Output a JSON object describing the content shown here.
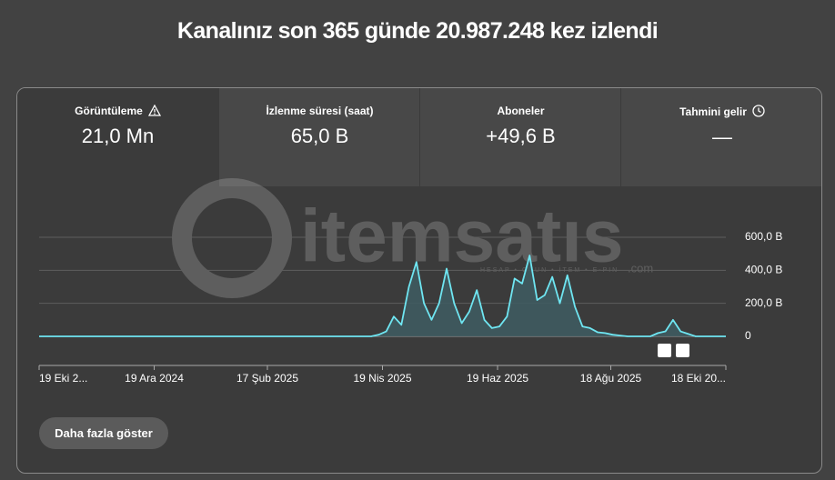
{
  "header": {
    "title": "Kanalınız son 365 günde 20.987.248 kez izlendi"
  },
  "metrics": [
    {
      "label": "Görüntüleme",
      "value": "21,0 Mn"
    },
    {
      "label": "İzlenme süresi (saat)",
      "value": "65,0 B"
    },
    {
      "label": "Aboneler",
      "value": "+49,6 B"
    },
    {
      "label": "Tahmini gelir",
      "value": "—"
    }
  ],
  "watermark": {
    "brand": "itemsatıs",
    "tagline": "HESAP • OYUN • İTEM • E-PIN",
    "domain": ".com"
  },
  "chart_data": {
    "type": "line",
    "color": "#6fe6f2",
    "fill": "#3f5b60",
    "grid": true,
    "x": [
      "2024-10-19",
      "2024-10-23",
      "2024-10-27",
      "2024-10-31",
      "2024-11-04",
      "2024-11-08",
      "2024-11-12",
      "2024-11-16",
      "2024-11-20",
      "2024-11-24",
      "2024-11-28",
      "2024-12-02",
      "2024-12-06",
      "2024-12-10",
      "2024-12-14",
      "2024-12-18",
      "2024-12-22",
      "2024-12-26",
      "2024-12-30",
      "2025-01-03",
      "2025-01-07",
      "2025-01-11",
      "2025-01-15",
      "2025-01-19",
      "2025-01-23",
      "2025-01-27",
      "2025-01-31",
      "2025-02-04",
      "2025-02-08",
      "2025-02-12",
      "2025-02-16",
      "2025-02-20",
      "2025-02-24",
      "2025-02-28",
      "2025-03-04",
      "2025-03-08",
      "2025-03-12",
      "2025-03-16",
      "2025-03-20",
      "2025-03-24",
      "2025-03-28",
      "2025-04-01",
      "2025-04-05",
      "2025-04-09",
      "2025-04-13",
      "2025-04-17",
      "2025-04-21",
      "2025-04-25",
      "2025-04-29",
      "2025-05-03",
      "2025-05-07",
      "2025-05-11",
      "2025-05-15",
      "2025-05-19",
      "2025-05-23",
      "2025-05-27",
      "2025-05-31",
      "2025-06-04",
      "2025-06-08",
      "2025-06-12",
      "2025-06-16",
      "2025-06-20",
      "2025-06-24",
      "2025-06-28",
      "2025-07-02",
      "2025-07-06",
      "2025-07-10",
      "2025-07-14",
      "2025-07-18",
      "2025-07-22",
      "2025-07-26",
      "2025-07-30",
      "2025-08-03",
      "2025-08-07",
      "2025-08-11",
      "2025-08-15",
      "2025-08-19",
      "2025-08-23",
      "2025-08-27",
      "2025-08-31",
      "2025-09-04",
      "2025-09-08",
      "2025-09-12",
      "2025-09-16",
      "2025-09-20",
      "2025-09-24",
      "2025-09-28",
      "2025-10-02",
      "2025-10-06",
      "2025-10-10",
      "2025-10-14",
      "2025-10-18"
    ],
    "values": [
      0,
      0,
      0,
      0,
      0,
      0,
      0,
      0,
      0,
      0,
      0,
      0,
      0,
      0,
      0,
      0,
      0,
      0,
      0,
      0,
      0,
      0,
      0,
      0,
      0,
      0,
      0,
      0,
      0,
      0,
      0,
      0,
      0,
      0,
      0,
      0,
      0,
      0,
      0,
      0,
      0,
      0,
      0,
      0,
      0,
      10000,
      30000,
      120000,
      70000,
      300000,
      450000,
      200000,
      100000,
      200000,
      410000,
      200000,
      80000,
      150000,
      280000,
      100000,
      50000,
      60000,
      120000,
      350000,
      320000,
      490000,
      220000,
      250000,
      360000,
      200000,
      370000,
      180000,
      60000,
      50000,
      25000,
      20000,
      10000,
      5000,
      0,
      0,
      0,
      0,
      20000,
      30000,
      100000,
      30000,
      15000,
      0,
      0,
      0,
      0,
      0
    ],
    "xlim": [
      "2024-10-19",
      "2025-10-18"
    ],
    "xticks": [
      {
        "value": "2024-10-19",
        "label": "19 Eki 2..."
      },
      {
        "value": "2024-12-19",
        "label": "19 Ara 2024"
      },
      {
        "value": "2025-02-17",
        "label": "17 Şub 2025"
      },
      {
        "value": "2025-04-19",
        "label": "19 Nis 2025"
      },
      {
        "value": "2025-06-19",
        "label": "19 Haz 2025"
      },
      {
        "value": "2025-08-18",
        "label": "18 Ağu 2025"
      },
      {
        "value": "2025-10-18",
        "label": "18 Eki 20..."
      }
    ],
    "ylim": [
      0,
      600000
    ],
    "yticks": [
      0,
      {
        "value": 200000,
        "label": "200,0 B"
      },
      {
        "value": 400000,
        "label": "400,0 B"
      },
      {
        "value": 600000,
        "label": "600,0 B"
      }
    ]
  },
  "button": {
    "label": "Daha fazla göster"
  }
}
